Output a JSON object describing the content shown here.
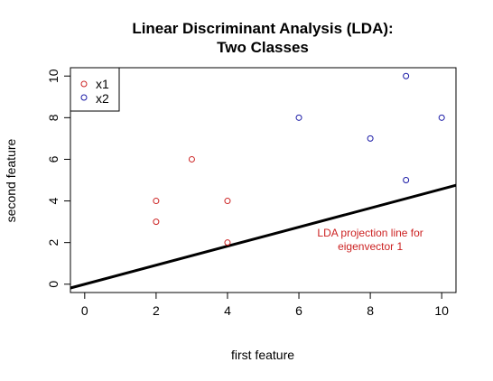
{
  "chart_data": {
    "type": "scatter",
    "title_lines": [
      "Linear Discriminant  Analysis (LDA):",
      "Two Classes"
    ],
    "xlabel": "first feature",
    "ylabel": "second feature",
    "xlim": [
      -0.4,
      10.4
    ],
    "ylim": [
      -0.4,
      10.4
    ],
    "x_ticks": [
      0,
      2,
      4,
      6,
      8,
      10
    ],
    "y_ticks": [
      0,
      2,
      4,
      6,
      8,
      10
    ],
    "x_tick_labels": [
      "0",
      "2",
      "4",
      "6",
      "8",
      "10"
    ],
    "y_tick_labels": [
      "0",
      "2",
      "4",
      "6",
      "8",
      "10"
    ],
    "grid": false,
    "legend_position": "top-left",
    "series": [
      {
        "name": "x1",
        "color": "#cc2222",
        "marker": "open-circle",
        "points": [
          [
            2,
            4
          ],
          [
            2,
            3
          ],
          [
            3,
            6
          ],
          [
            4,
            4
          ],
          [
            4,
            2
          ]
        ]
      },
      {
        "name": "x2",
        "color": "#1a1aa6",
        "marker": "open-circle",
        "points": [
          [
            6,
            8
          ],
          [
            8,
            7
          ],
          [
            9,
            10
          ],
          [
            9,
            5
          ],
          [
            10,
            8
          ]
        ]
      }
    ],
    "projection_line": {
      "slope": 0.457,
      "intercept": 0.0,
      "color": "#000000"
    },
    "annotation": {
      "lines": [
        "LDA projection line for",
        "eigenvector 1"
      ],
      "x": 8,
      "y": 2.3,
      "color": "#cc2222"
    }
  }
}
